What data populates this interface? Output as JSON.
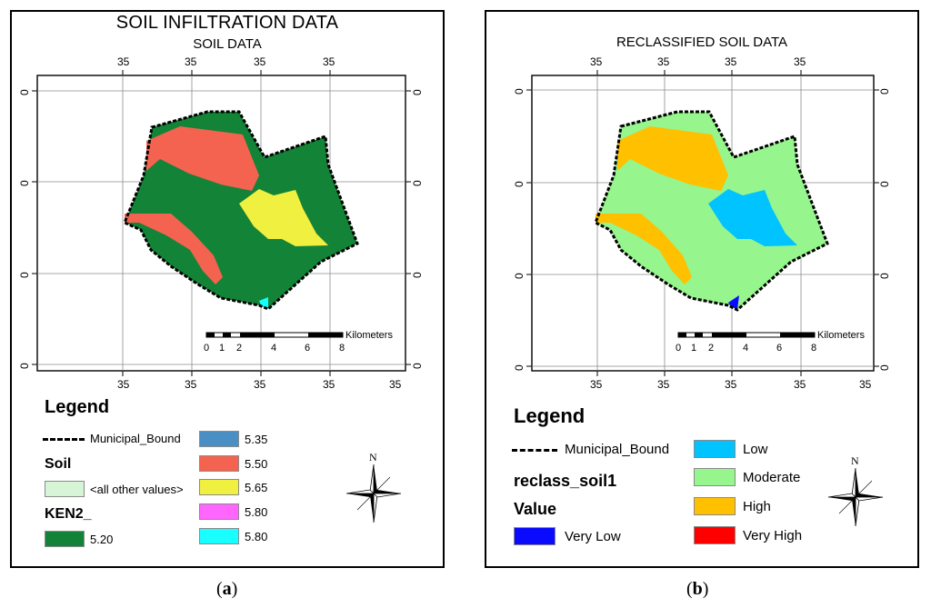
{
  "panel_a": {
    "title": "SOIL INFILTRATION DATA",
    "subtitle": "SOIL DATA",
    "top_ticks": [
      "35",
      "35",
      "35",
      "35"
    ],
    "bottom_ticks": [
      "35",
      "35",
      "35",
      "35",
      "35"
    ],
    "side_ticks": [
      "0",
      "0",
      "0",
      "0"
    ],
    "scale": {
      "unit": "Kilometers",
      "labels": [
        "0",
        "1",
        "2",
        "4",
        "6",
        "8"
      ]
    },
    "legend": {
      "title": "Legend",
      "boundary_label": "Municipal_Bound",
      "soil_heading": "Soil",
      "other_values_label": "<all other values>",
      "field_heading": "KEN2_",
      "items": [
        {
          "label": "5.20",
          "color": "#138337"
        },
        {
          "label": "5.35",
          "color": "#4a8fc4"
        },
        {
          "label": "5.50",
          "color": "#f3634f"
        },
        {
          "label": "5.65",
          "color": "#f0f040"
        },
        {
          "label": "5.80",
          "color": "#ff66ff"
        },
        {
          "label": "5.80",
          "color": "#19ffff"
        }
      ],
      "other_values_color": "#d6f5d6"
    },
    "compass_label": "N",
    "caption_letter": "a"
  },
  "panel_b": {
    "title": "RECLASSIFIED SOIL DATA",
    "top_ticks": [
      "35",
      "35",
      "35",
      "35"
    ],
    "bottom_ticks": [
      "35",
      "35",
      "35",
      "35",
      "35"
    ],
    "side_ticks": [
      "0",
      "0",
      "0",
      "0"
    ],
    "scale": {
      "unit": "Kilometers",
      "labels": [
        "0",
        "1",
        "2",
        "4",
        "6",
        "8"
      ]
    },
    "legend": {
      "title": "Legend",
      "boundary_label": "Municipal_Bound",
      "field_heading": "reclass_soil1",
      "value_heading": "Value",
      "items": [
        {
          "label": "Very Low",
          "color": "#0a0aff"
        },
        {
          "label": "Low",
          "color": "#00c3ff"
        },
        {
          "label": "Moderate",
          "color": "#96f58c"
        },
        {
          "label": "High",
          "color": "#ffc000"
        },
        {
          "label": "Very High",
          "color": "#ff0000"
        }
      ]
    },
    "compass_label": "N",
    "caption_letter": "b"
  }
}
